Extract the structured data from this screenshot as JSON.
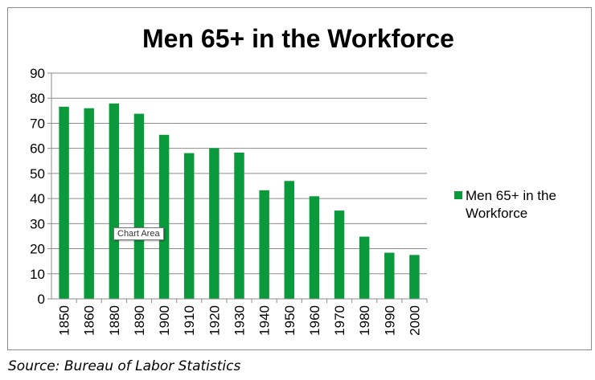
{
  "chart_data": {
    "type": "bar",
    "title": "Men 65+ in the Workforce",
    "categories": [
      "1850",
      "1860",
      "1880",
      "1890",
      "1900",
      "1910",
      "1920",
      "1930",
      "1940",
      "1950",
      "1960",
      "1970",
      "1980",
      "1990",
      "2000"
    ],
    "series": [
      {
        "name": "Men 65+ in the Workforce",
        "color": "#0a9a3c",
        "values": [
          76.6,
          76.0,
          77.9,
          73.8,
          65.4,
          58.1,
          60.1,
          58.3,
          43.3,
          47.0,
          40.9,
          35.2,
          24.8,
          18.4,
          17.5
        ]
      }
    ],
    "ylim": [
      0,
      90
    ],
    "yticks": [
      "0",
      "10",
      "20",
      "30",
      "40",
      "50",
      "60",
      "70",
      "80",
      "90"
    ],
    "grid": true,
    "legend_position": "right"
  },
  "tooltip": {
    "label": "Chart Area"
  },
  "source": "Source: Bureau of Labor Statistics"
}
